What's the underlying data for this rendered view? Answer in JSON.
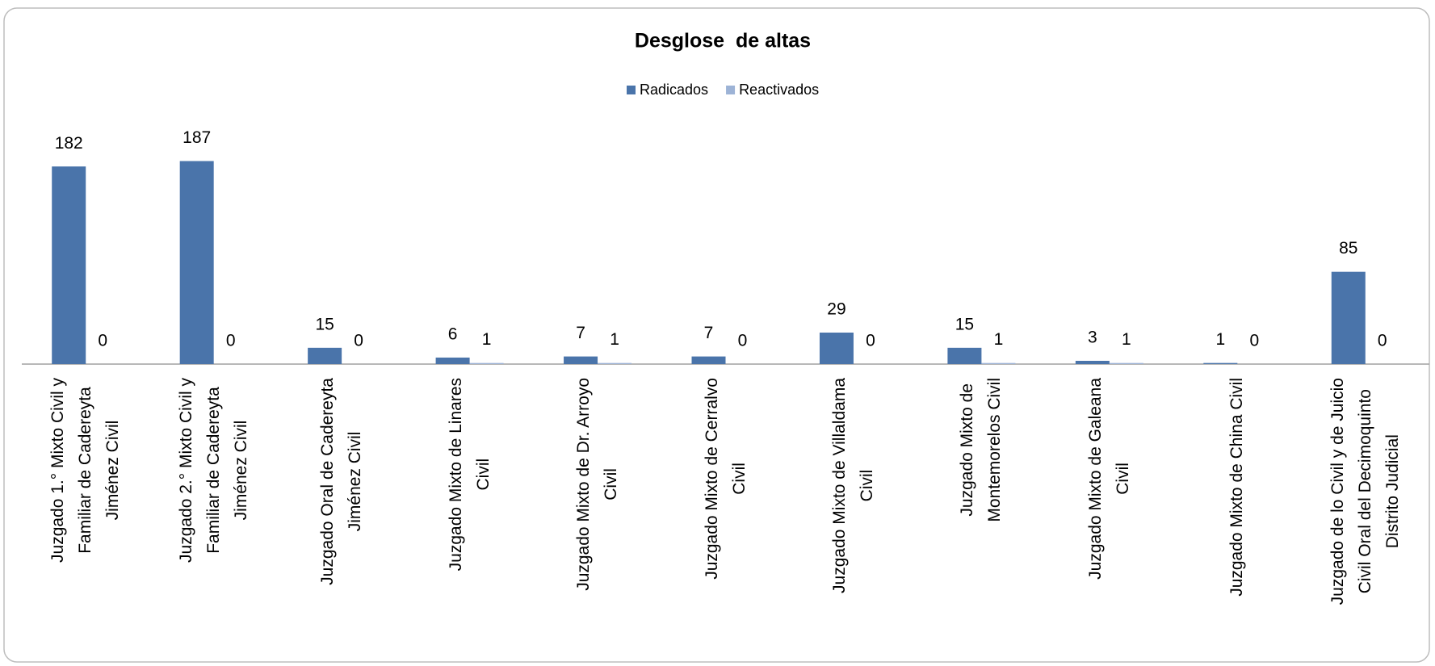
{
  "chart_data": {
    "type": "bar",
    "title": "Desglose  de altas",
    "categories": [
      "Juzgado 1.° Mixto Civil y\nFamiliar de Cadereyta\nJiménez Civil",
      "Juzgado 2.° Mixto Civil y\nFamiliar de Cadereyta\nJiménez Civil",
      "Juzgado Oral de Cadereyta\nJiménez Civil",
      "Juzgado Mixto de Linares\nCivil",
      "Juzgado Mixto de Dr. Arroyo\nCivil",
      "Juzgado Mixto de Cerralvo\nCivil",
      "Juzgado Mixto de Villaldama\nCivil",
      "Juzgado Mixto de\nMontemorelos Civil",
      "Juzgado Mixto de Galeana\nCivil",
      "Juzgado Mixto de China Civil",
      "Juzgado de lo Civil y de Juicio\nCivil Oral del Decimoquinto\nDistrito Judicial"
    ],
    "series": [
      {
        "name": "Radicados",
        "color": "#4a74aa",
        "values": [
          182,
          187,
          15,
          6,
          7,
          7,
          29,
          15,
          3,
          1,
          85
        ]
      },
      {
        "name": "Reactivados",
        "color": "#9db3d6",
        "values": [
          0,
          0,
          0,
          1,
          1,
          0,
          0,
          1,
          1,
          0,
          0
        ]
      }
    ],
    "legend": "top"
  }
}
